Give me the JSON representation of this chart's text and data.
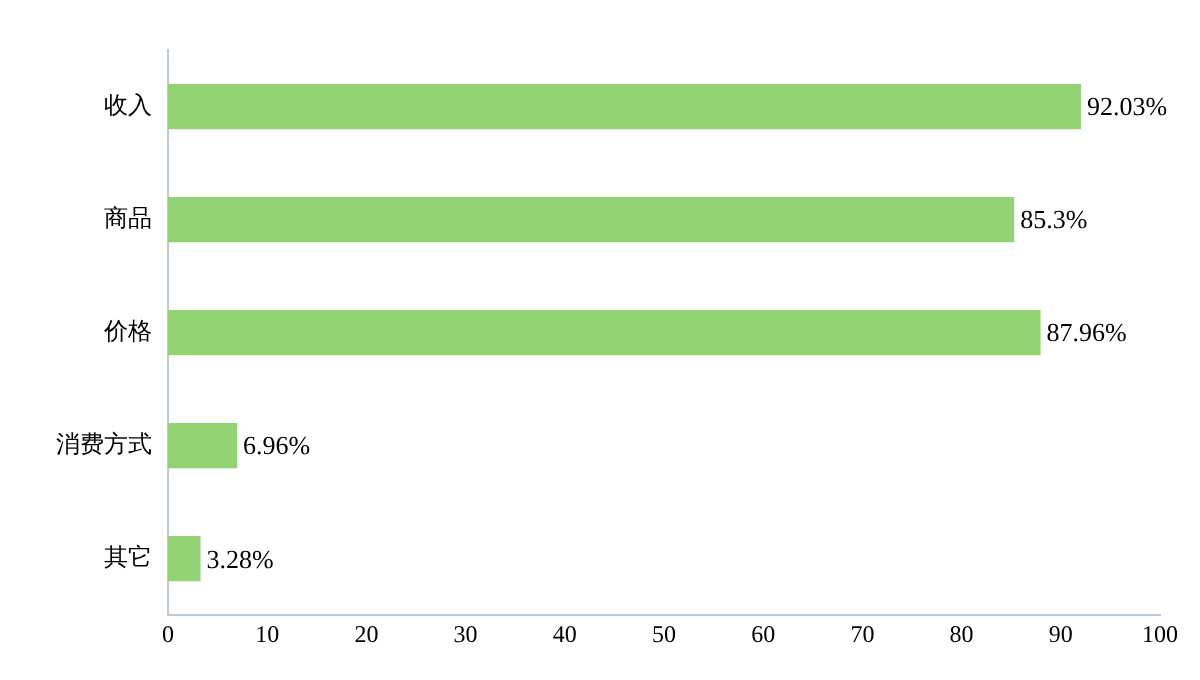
{
  "chart_data": {
    "type": "bar",
    "orientation": "horizontal",
    "categories": [
      "收入",
      "商品",
      "价格",
      "消费方式",
      "其它"
    ],
    "values": [
      92.03,
      85.3,
      87.96,
      6.96,
      3.28
    ],
    "value_labels": [
      "92.03%",
      "85.3%",
      "87.96%",
      "6.96%",
      "3.28%"
    ],
    "color": "#93d273",
    "xlim": [
      0,
      100
    ],
    "xticks": [
      0,
      10,
      20,
      30,
      40,
      50,
      60,
      70,
      80,
      90,
      100
    ],
    "grid": false,
    "legend": false
  }
}
